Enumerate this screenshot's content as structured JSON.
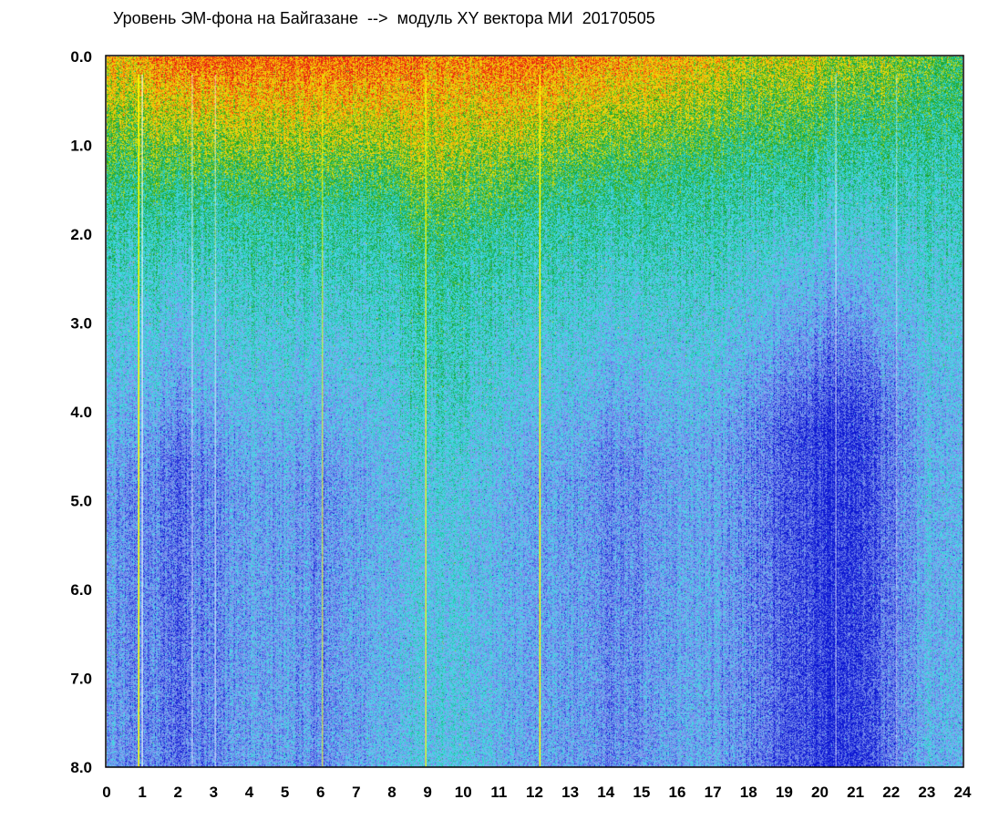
{
  "chart_data": {
    "type": "heatmap",
    "title": "Уровень ЭМ-фона на Байгазане  -->  модуль XY вектора МИ  20170505",
    "xlabel": "",
    "ylabel": "",
    "xlim": [
      0,
      24
    ],
    "ylim": [
      8.0,
      0.0
    ],
    "y_axis_inverted": true,
    "grid": false,
    "x_ticks": [
      "0",
      "1",
      "2",
      "3",
      "4",
      "5",
      "6",
      "7",
      "8",
      "9",
      "10",
      "11",
      "12",
      "13",
      "14",
      "15",
      "16",
      "17",
      "18",
      "19",
      "20",
      "21",
      "22",
      "23",
      "24"
    ],
    "y_ticks": [
      "0.0",
      "1.0",
      "2.0",
      "3.0",
      "4.0",
      "5.0",
      "6.0",
      "7.0",
      "8.0"
    ],
    "colorscale": [
      "#0a14d2",
      "#5a6ee6",
      "#8ca0f0",
      "#46dceb",
      "#28c8b4",
      "#14a01e",
      "#e6e614",
      "#ffb400",
      "#e61e14"
    ],
    "colorscale_order": "low-to-high",
    "hour_profile": {
      "hours": [
        0,
        1,
        2,
        3,
        4,
        5,
        6,
        7,
        8,
        9,
        10,
        11,
        12,
        13,
        14,
        15,
        16,
        17,
        18,
        19,
        20,
        21,
        22,
        23,
        24
      ],
      "green_band_depth": [
        1.8,
        1.8,
        1.6,
        1.7,
        1.8,
        1.8,
        1.8,
        1.7,
        1.8,
        2.4,
        2.2,
        2.0,
        1.8,
        1.7,
        1.6,
        1.6,
        1.5,
        1.4,
        1.3,
        1.2,
        1.2,
        1.1,
        1.1,
        1.0,
        1.0
      ],
      "surface_intensity": [
        0.85,
        0.85,
        0.95,
        0.95,
        0.95,
        0.95,
        0.95,
        0.95,
        0.95,
        0.9,
        0.9,
        0.95,
        0.95,
        0.9,
        0.9,
        0.85,
        0.85,
        0.8,
        0.75,
        0.75,
        0.75,
        0.7,
        0.7,
        0.65,
        0.6
      ],
      "deep_intensity": [
        0.25,
        0.2,
        0.15,
        0.2,
        0.25,
        0.25,
        0.2,
        0.25,
        0.3,
        0.35,
        0.35,
        0.3,
        0.25,
        0.25,
        0.2,
        0.2,
        0.25,
        0.25,
        0.2,
        0.1,
        0.05,
        0.05,
        0.15,
        0.3,
        0.3
      ]
    },
    "vertical_streaks": [
      {
        "hour": 0.9,
        "color": "#ffff00",
        "strength": 0.9
      },
      {
        "hour": 1.0,
        "color": "#ffffff",
        "strength": 0.6
      },
      {
        "hour": 2.4,
        "color": "#ffffff",
        "strength": 0.4
      },
      {
        "hour": 3.05,
        "color": "#ffffff",
        "strength": 0.4
      },
      {
        "hour": 6.05,
        "color": "#ffff00",
        "strength": 0.5
      },
      {
        "hour": 8.95,
        "color": "#ffff00",
        "strength": 0.7
      },
      {
        "hour": 12.15,
        "color": "#ffff00",
        "strength": 0.9
      },
      {
        "hour": 20.45,
        "color": "#ffffff",
        "strength": 0.4
      },
      {
        "hour": 22.15,
        "color": "#ffffff",
        "strength": 0.3
      }
    ]
  }
}
